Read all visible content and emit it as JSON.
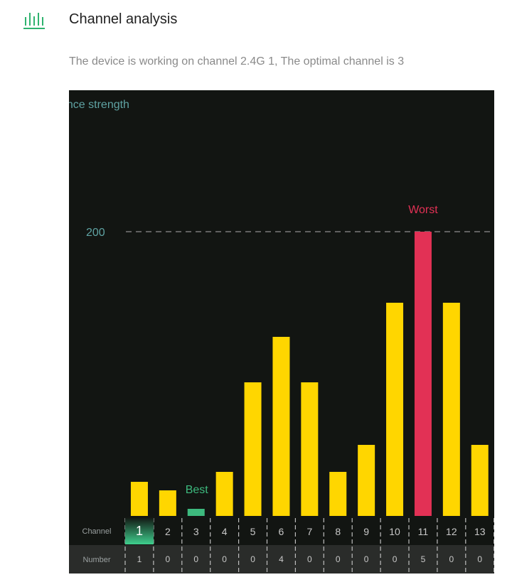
{
  "header": {
    "icon": "signal-bars-icon",
    "title": "Channel analysis"
  },
  "summary": {
    "text": "The device is working on channel 2.4G 1, The optimal channel is 3"
  },
  "chart_data": {
    "type": "bar",
    "ylabel_visible": "ence strength",
    "reference_line": {
      "value": 200,
      "label": "200",
      "style": "dashed"
    },
    "ylim": [
      0,
      250
    ],
    "categories": [
      "1",
      "2",
      "3",
      "4",
      "5",
      "6",
      "7",
      "8",
      "9",
      "10",
      "11",
      "12",
      "13"
    ],
    "values": [
      24,
      18,
      5,
      31,
      94,
      126,
      94,
      31,
      50,
      150,
      200,
      150,
      50
    ],
    "numbers": [
      "1",
      "0",
      "0",
      "0",
      "0",
      "4",
      "0",
      "0",
      "0",
      "0",
      "5",
      "0",
      "0"
    ],
    "row_labels": {
      "channel": "Channel",
      "number": "Number"
    },
    "current_channel": "1",
    "best": {
      "category": "3",
      "label": "Best"
    },
    "worst": {
      "category": "11",
      "label": "Worst"
    },
    "colors": {
      "bar": "#ffd600",
      "best": "#3dba7e",
      "worst": "#e23155",
      "current_highlight": "#3fcf8e",
      "axis_text": "#5fa3a3",
      "background": "#121512",
      "number_row": "#2a2c2a"
    },
    "grid": false
  }
}
